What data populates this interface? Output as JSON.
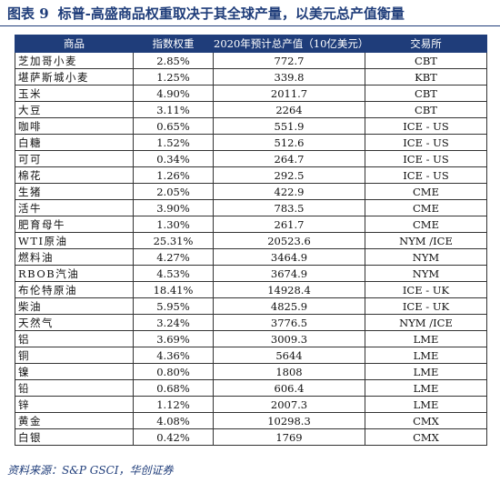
{
  "figure_label": "图表 9",
  "title": "标普-高盛商品权重取决于其全球产量，以美元总产值衡量",
  "table": {
    "headers": [
      "商品",
      "指数权重",
      "2020年预计总产值（10亿美元）",
      "交易所"
    ],
    "rows": [
      [
        "芝加哥小麦",
        "2.85%",
        "772.7",
        "CBT"
      ],
      [
        "堪萨斯城小麦",
        "1.25%",
        "339.8",
        "KBT"
      ],
      [
        "玉米",
        "4.90%",
        "2011.7",
        "CBT"
      ],
      [
        "大豆",
        "3.11%",
        "2264",
        "CBT"
      ],
      [
        "咖啡",
        "0.65%",
        "551.9",
        "ICE - US"
      ],
      [
        "白糖",
        "1.52%",
        "512.6",
        "ICE - US"
      ],
      [
        "可可",
        "0.34%",
        "264.7",
        "ICE - US"
      ],
      [
        "棉花",
        "1.26%",
        "292.5",
        "ICE - US"
      ],
      [
        "生猪",
        "2.05%",
        "422.9",
        "CME"
      ],
      [
        "活牛",
        "3.90%",
        "783.5",
        "CME"
      ],
      [
        "肥育母牛",
        "1.30%",
        "261.7",
        "CME"
      ],
      [
        "WTI原油",
        "25.31%",
        "20523.6",
        "NYM /ICE"
      ],
      [
        "燃料油",
        "4.27%",
        "3464.9",
        "NYM"
      ],
      [
        "RBOB汽油",
        "4.53%",
        "3674.9",
        "NYM"
      ],
      [
        "布伦特原油",
        "18.41%",
        "14928.4",
        "ICE - UK"
      ],
      [
        "柴油",
        "5.95%",
        "4825.9",
        "ICE - UK"
      ],
      [
        "天然气",
        "3.24%",
        "3776.5",
        "NYM /ICE"
      ],
      [
        "铝",
        "3.69%",
        "3009.3",
        "LME"
      ],
      [
        "铜",
        "4.36%",
        "5644",
        "LME"
      ],
      [
        "镍",
        "0.80%",
        "1808",
        "LME"
      ],
      [
        "铅",
        "0.68%",
        "606.4",
        "LME"
      ],
      [
        "锌",
        "1.12%",
        "2007.3",
        "LME"
      ],
      [
        "黄金",
        "4.08%",
        "10298.3",
        "CMX"
      ],
      [
        "白银",
        "0.42%",
        "1769",
        "CMX"
      ]
    ]
  },
  "source": "资料来源：S&P GSCI，华创证券",
  "colors": {
    "header_bg": "#1f3d7a",
    "title_text": "#1f3d7a"
  }
}
